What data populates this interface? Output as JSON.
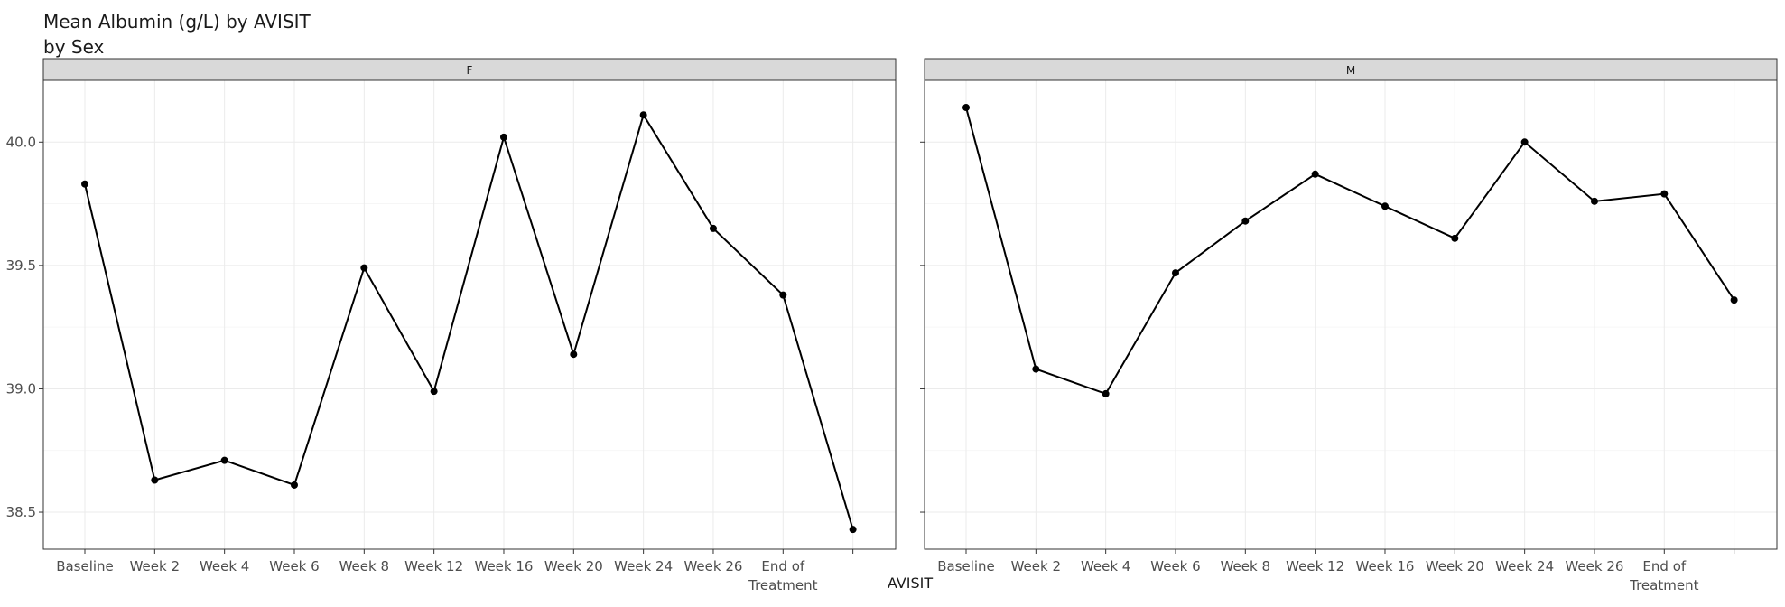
{
  "chart_data": {
    "type": "line",
    "title": "Mean Albumin (g/L) by AVISIT",
    "subtitle": "by Sex",
    "xlabel": "AVISIT",
    "ylabel": "",
    "categories": [
      "Baseline",
      "Week 2",
      "Week 4",
      "Week 6",
      "Week 8",
      "Week 12",
      "Week 16",
      "Week 20",
      "Week 24",
      "Week 26",
      "End of\nTreatment",
      ""
    ],
    "ylim": [
      38.35,
      40.25
    ],
    "yticks": [
      "38.5",
      "39.0",
      "39.5",
      "40.0"
    ],
    "grid": true,
    "panels": [
      {
        "label": "F",
        "values": [
          39.83,
          38.63,
          38.71,
          38.61,
          39.49,
          38.99,
          40.02,
          39.14,
          40.11,
          39.65,
          39.38,
          38.43
        ]
      },
      {
        "label": "M",
        "values": [
          40.14,
          39.08,
          38.98,
          39.47,
          39.68,
          39.87,
          39.74,
          39.61,
          40.0,
          39.76,
          39.79,
          39.36
        ]
      }
    ],
    "colors": {
      "strip_fill": "#d9d9d9",
      "panel_border": "#333333",
      "grid": "#ebebeb",
      "line": "#000000",
      "axis_text": "#4d4d4d"
    }
  }
}
